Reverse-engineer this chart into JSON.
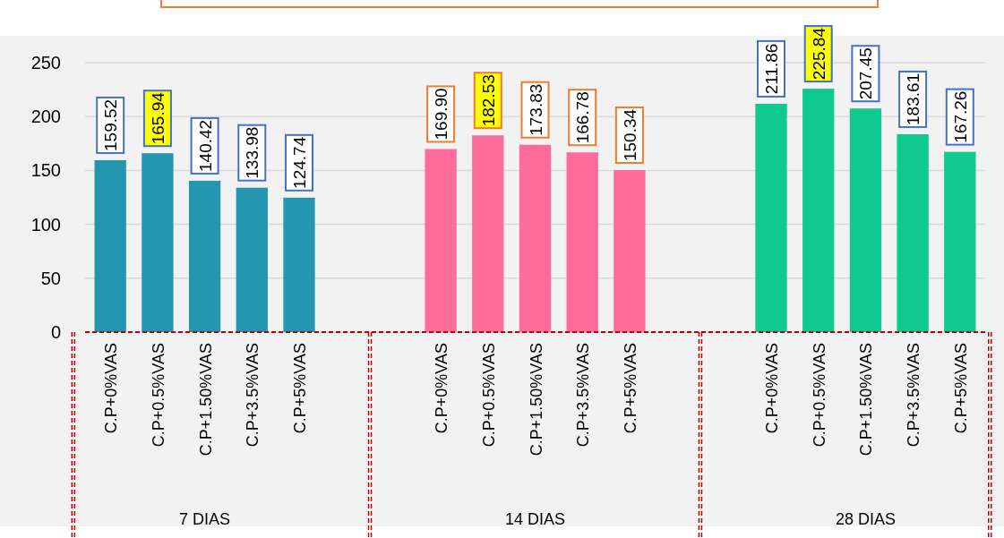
{
  "chart_data": {
    "type": "bar",
    "categories": [
      "C.P+0%VAS",
      "C.P+0.5%VAS",
      "C.P+1.50%VAS",
      "C.P+3.5%VAS",
      "C.P+5%VAS",
      null,
      null,
      "C.P+0%VAS",
      "C.P+0.5%VAS",
      "C.P+1.50%VAS",
      "C.P+3.5%VAS",
      "C.P+5%VAS",
      null,
      null,
      "C.P+0%VAS",
      "C.P+0.5%VAS",
      "C.P+1.50%VAS",
      "C.P+3.5%VAS",
      "C.P+5%VAS"
    ],
    "series": [
      {
        "color": "#2596b0",
        "values": [
          159.52,
          165.94,
          140.42,
          133.98,
          124.74,
          null,
          null,
          null,
          null,
          null,
          null,
          null,
          null,
          null,
          null,
          null,
          null,
          null,
          null
        ]
      },
      {
        "color": "#ff6b9a",
        "values": [
          null,
          null,
          null,
          null,
          null,
          null,
          null,
          169.9,
          182.53,
          173.83,
          166.78,
          150.34,
          null,
          null,
          null,
          null,
          null,
          null,
          null
        ]
      },
      {
        "color": "#10c98f",
        "values": [
          null,
          null,
          null,
          null,
          null,
          null,
          null,
          null,
          null,
          null,
          null,
          null,
          null,
          null,
          211.86,
          225.84,
          207.45,
          183.61,
          167.26
        ]
      }
    ],
    "value_labels": [
      [
        "159.52",
        "165.94",
        "140.42",
        "133.98",
        "124.74",
        null,
        null,
        null,
        null,
        null,
        null,
        null,
        null,
        null,
        null,
        null,
        null,
        null,
        null
      ],
      [
        null,
        null,
        null,
        null,
        null,
        null,
        null,
        "169.90",
        "182.53",
        "173.83",
        "166.78",
        "150.34",
        null,
        null,
        null,
        null,
        null,
        null,
        null
      ],
      [
        null,
        null,
        null,
        null,
        null,
        null,
        null,
        null,
        null,
        null,
        null,
        null,
        null,
        null,
        "211.86",
        "225.84",
        "207.45",
        "183.61",
        "167.26"
      ]
    ],
    "annotations": [
      "7 DIAS",
      "14 DIAS",
      "28 DIAS"
    ],
    "ylim": [
      0,
      250
    ],
    "yticks": [
      0,
      50,
      100,
      150,
      200,
      250
    ],
    "grid": "y"
  }
}
